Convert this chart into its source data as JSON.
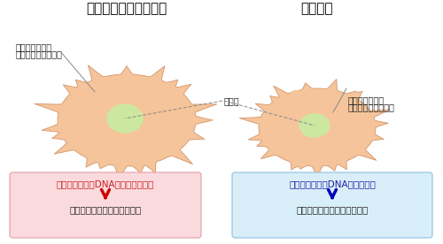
{
  "title_left": "ミトコンドリア病細胞",
  "title_right": "正常細胞",
  "label_mito_left_line1": "ミトコンドリア",
  "label_mito_left_line2": "（遺伝子異常あり）",
  "label_nucleus": "細胞核",
  "label_mito_right_line1": "ミトコンドリア",
  "label_mito_right_line2": "（遺伝子異常なし）",
  "box_left_line1": "ミトコンドリアDNAに遺伝子の異常",
  "box_left_line2": "ミトコンドリアの働きが低下",
  "box_right_line1": "ミトコンドリアDNAに異常なし",
  "box_right_line2": "ミトコンドリアの働きは正常",
  "cell_color": "#f5c49a",
  "cell_edge_color": "#d4956a",
  "nucleus_color": "#cce8a0",
  "nucleus_edge_color": "#9aba70",
  "mito_red_fill": "#f5c49a",
  "mito_red_edge": "#cc2020",
  "mito_blue_fill": "#f5c49a",
  "mito_blue_edge": "#2040cc",
  "box_left_bg": "#fadadd",
  "box_left_edge": "#e0a0a8",
  "box_right_bg": "#d8eef8",
  "box_right_edge": "#90c0e0",
  "arrow_red": "#cc0000",
  "arrow_blue": "#0000bb",
  "box_text_red": "#cc2020",
  "box_text_blue": "#2020aa",
  "text_dark": "#222222",
  "line_color": "#888888"
}
